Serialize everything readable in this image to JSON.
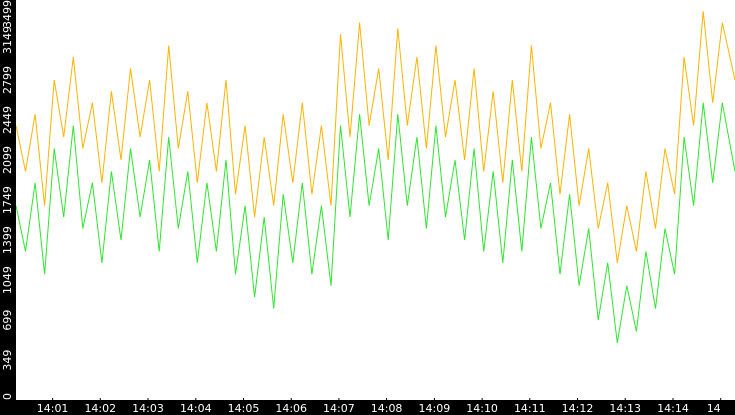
{
  "chart_data": {
    "type": "line",
    "title": "",
    "xlabel": "",
    "ylabel": "",
    "ylim": [
      0,
      3499
    ],
    "xlim": [
      "14:00:14",
      "14:15:18"
    ],
    "grid": false,
    "legend": "none",
    "y_ticks": [
      0,
      349,
      699,
      1049,
      1399,
      1749,
      2099,
      2449,
      2799,
      3149,
      3499
    ],
    "x_ticks": [
      "14:01",
      "14:02",
      "14:03",
      "14:04",
      "14:05",
      "14:06",
      "14:07",
      "14:08",
      "14:09",
      "14:10",
      "14:11",
      "14:12",
      "14:13",
      "14:14",
      "14"
    ],
    "x_tick_times": [
      "14:01:00",
      "14:02:00",
      "14:03:00",
      "14:04:00",
      "14:05:00",
      "14:06:00",
      "14:07:00",
      "14:08:00",
      "14:09:00",
      "14:10:00",
      "14:11:00",
      "14:12:00",
      "14:13:00",
      "14:14:00",
      "14:15:00"
    ],
    "colors": {
      "series_upper": "#ffb300",
      "series_lower": "#2ee62e",
      "axis_bg": "#000000",
      "axis_text": "#ffffff"
    },
    "series": [
      {
        "x": [
          "14:00:14",
          "14:00:26",
          "14:00:38",
          "14:00:50",
          "14:01:02",
          "14:01:14",
          "14:01:26",
          "14:01:38",
          "14:01:50",
          "14:02:02",
          "14:02:14",
          "14:02:26",
          "14:02:38",
          "14:02:50",
          "14:03:02",
          "14:03:14",
          "14:03:26",
          "14:03:38",
          "14:03:50",
          "14:04:02",
          "14:04:14",
          "14:04:26",
          "14:04:38",
          "14:04:50",
          "14:05:02",
          "14:05:14",
          "14:05:26",
          "14:05:38",
          "14:05:50",
          "14:06:02",
          "14:06:14",
          "14:06:26",
          "14:06:38",
          "14:06:50",
          "14:07:02",
          "14:07:14",
          "14:07:26",
          "14:07:38",
          "14:07:50",
          "14:08:02",
          "14:08:14",
          "14:08:26",
          "14:08:38",
          "14:08:50",
          "14:09:02",
          "14:09:14",
          "14:09:26",
          "14:09:38",
          "14:09:50",
          "14:10:02",
          "14:10:14",
          "14:10:26",
          "14:10:38",
          "14:10:50",
          "14:11:02",
          "14:11:14",
          "14:11:26",
          "14:11:38",
          "14:11:50",
          "14:12:02",
          "14:12:14",
          "14:12:26",
          "14:12:38",
          "14:12:50",
          "14:13:02",
          "14:13:14",
          "14:13:26",
          "14:13:38",
          "14:13:50",
          "14:14:02",
          "14:14:14",
          "14:14:26",
          "14:14:38",
          "14:14:50",
          "14:15:02",
          "14:15:18"
        ],
        "values": [
          2400,
          2000,
          2500,
          1700,
          2800,
          2300,
          3000,
          2200,
          2600,
          1900,
          2700,
          2100,
          2900,
          2300,
          2800,
          2000,
          3100,
          2200,
          2700,
          1900,
          2600,
          2000,
          2800,
          1800,
          2400,
          1600,
          2300,
          1700,
          2500,
          1900,
          2600,
          1800,
          2400,
          1700,
          3200,
          2300,
          3300,
          2400,
          2900,
          2100,
          3250,
          2400,
          3000,
          2200,
          3100,
          2300,
          2800,
          2100,
          2900,
          2000,
          2700,
          1900,
          2800,
          2000,
          3100,
          2200,
          2600,
          1800,
          2500,
          1700,
          2200,
          1500,
          1900,
          1200,
          1700,
          1300,
          2000,
          1500,
          2200,
          1800,
          3000,
          2400,
          3400,
          2600,
          3300,
          2800
        ]
      },
      {
        "x": [
          "14:00:14",
          "14:00:26",
          "14:00:38",
          "14:00:50",
          "14:01:02",
          "14:01:14",
          "14:01:26",
          "14:01:38",
          "14:01:50",
          "14:02:02",
          "14:02:14",
          "14:02:26",
          "14:02:38",
          "14:02:50",
          "14:03:02",
          "14:03:14",
          "14:03:26",
          "14:03:38",
          "14:03:50",
          "14:04:02",
          "14:04:14",
          "14:04:26",
          "14:04:38",
          "14:04:50",
          "14:05:02",
          "14:05:14",
          "14:05:26",
          "14:05:38",
          "14:05:50",
          "14:06:02",
          "14:06:14",
          "14:06:26",
          "14:06:38",
          "14:06:50",
          "14:07:02",
          "14:07:14",
          "14:07:26",
          "14:07:38",
          "14:07:50",
          "14:08:02",
          "14:08:14",
          "14:08:26",
          "14:08:38",
          "14:08:50",
          "14:09:02",
          "14:09:14",
          "14:09:26",
          "14:09:38",
          "14:09:50",
          "14:10:02",
          "14:10:14",
          "14:10:26",
          "14:10:38",
          "14:10:50",
          "14:11:02",
          "14:11:14",
          "14:11:26",
          "14:11:38",
          "14:11:50",
          "14:12:02",
          "14:12:14",
          "14:12:26",
          "14:12:38",
          "14:12:50",
          "14:13:02",
          "14:13:14",
          "14:13:26",
          "14:13:38",
          "14:13:50",
          "14:14:02",
          "14:14:14",
          "14:14:26",
          "14:14:38",
          "14:14:50",
          "14:15:02",
          "14:15:18"
        ],
        "values": [
          1700,
          1300,
          1900,
          1100,
          2200,
          1600,
          2400,
          1500,
          1900,
          1200,
          2000,
          1400,
          2200,
          1600,
          2100,
          1300,
          2300,
          1500,
          2000,
          1200,
          1900,
          1300,
          2100,
          1100,
          1700,
          900,
          1600,
          800,
          1800,
          1200,
          1900,
          1100,
          1700,
          1000,
          2400,
          1600,
          2500,
          1700,
          2200,
          1400,
          2500,
          1700,
          2300,
          1500,
          2400,
          1600,
          2100,
          1400,
          2200,
          1300,
          2000,
          1200,
          2100,
          1300,
          2300,
          1500,
          1900,
          1100,
          1800,
          1000,
          1500,
          700,
          1200,
          500,
          1000,
          600,
          1300,
          800,
          1500,
          1100,
          2300,
          1700,
          2600,
          1900,
          2600,
          2000
        ]
      }
    ]
  }
}
